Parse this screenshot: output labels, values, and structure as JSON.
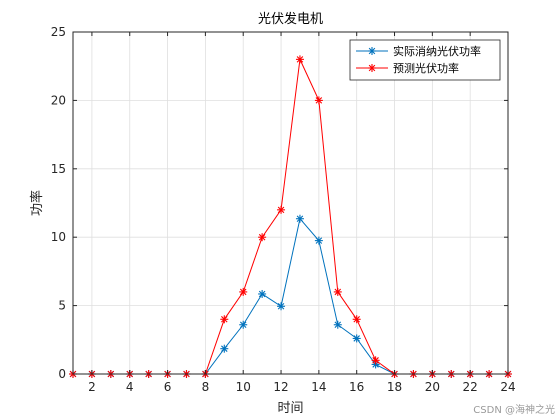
{
  "chart_data": {
    "type": "line",
    "title": "光伏发电机",
    "xlabel": "时间",
    "ylabel": "功率",
    "xlim": [
      1,
      24
    ],
    "ylim": [
      0,
      25
    ],
    "xticks": [
      2,
      4,
      6,
      8,
      10,
      12,
      14,
      16,
      18,
      20,
      22,
      24
    ],
    "yticks": [
      0,
      5,
      10,
      15,
      20,
      25
    ],
    "grid": true,
    "legend_position": "top-right",
    "x": [
      1,
      2,
      3,
      4,
      5,
      6,
      7,
      8,
      9,
      10,
      11,
      12,
      13,
      14,
      15,
      16,
      17,
      18,
      19,
      20,
      21,
      22,
      23,
      24
    ],
    "series": [
      {
        "name": "实际消纳光伏功率",
        "color": "#0072BD",
        "marker": "asterisk",
        "values": [
          0,
          0,
          0,
          0,
          0,
          0,
          0,
          0,
          1.85,
          3.6,
          5.85,
          4.95,
          11.35,
          9.75,
          3.6,
          2.6,
          0.7,
          0,
          0,
          0,
          0,
          0,
          0,
          0
        ]
      },
      {
        "name": "预测光伏功率",
        "color": "#FF0000",
        "marker": "asterisk",
        "values": [
          0,
          0,
          0,
          0,
          0,
          0,
          0,
          0,
          4.0,
          6.0,
          10.0,
          12.0,
          23.0,
          20.0,
          6.0,
          4.0,
          1.0,
          0,
          0,
          0,
          0,
          0,
          0,
          0
        ]
      }
    ]
  },
  "watermark": "CSDN @海神之光"
}
